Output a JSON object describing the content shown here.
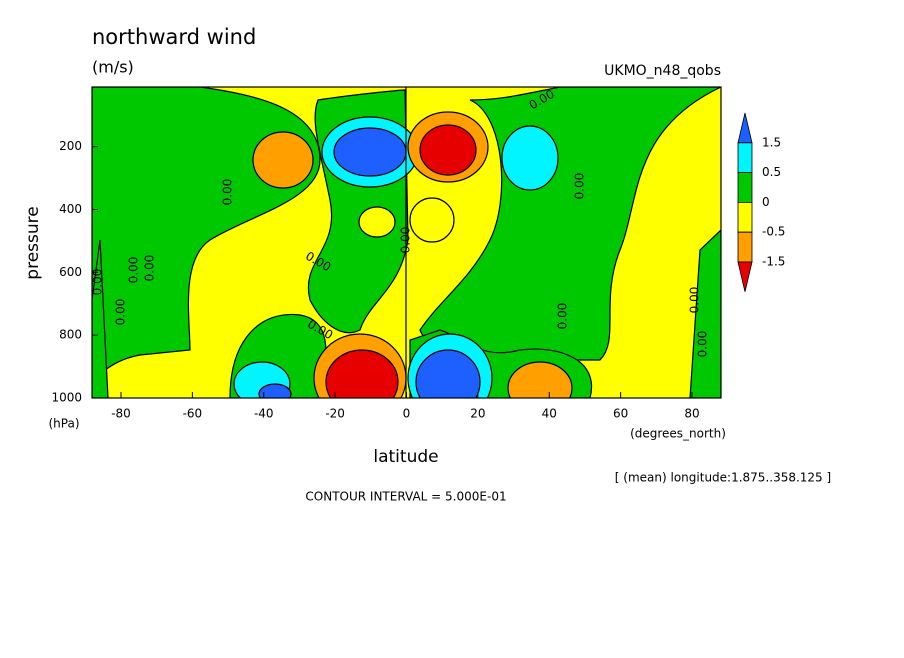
{
  "chart_data": {
    "type": "contour",
    "title": "northward wind",
    "units": "(m/s)",
    "dataset": "UKMO_n48_qobs",
    "x_label": "latitude",
    "x_units": "(degrees_north)",
    "y_label": "pressure",
    "y_units": "(hPa)",
    "note": "[ (mean) longitude:1.875..358.125 ]",
    "contour_interval": "CONTOUR INTERVAL = 5.000E-01",
    "xlim": [
      -88.125,
      88.125
    ],
    "xticks": [
      -80,
      -60,
      -40,
      -20,
      0,
      20,
      40,
      60,
      80
    ],
    "ylim": [
      1000,
      10
    ],
    "yticks": [
      200,
      400,
      600,
      800,
      1000
    ],
    "levels": [
      -1.5,
      -0.5,
      0,
      0.5,
      1.5
    ],
    "colors": [
      "#1e5fff",
      "#00f5ff",
      "#00c800",
      "#ffff00",
      "#ff9f00",
      "#e60000"
    ],
    "contour_labels": [
      "0.00",
      "0.00",
      "0.00",
      "0.00",
      "0.00",
      "0.00",
      "0.00",
      "0.00",
      "0.00",
      "0.00",
      "0.00",
      "0.00",
      "0.00"
    ]
  }
}
